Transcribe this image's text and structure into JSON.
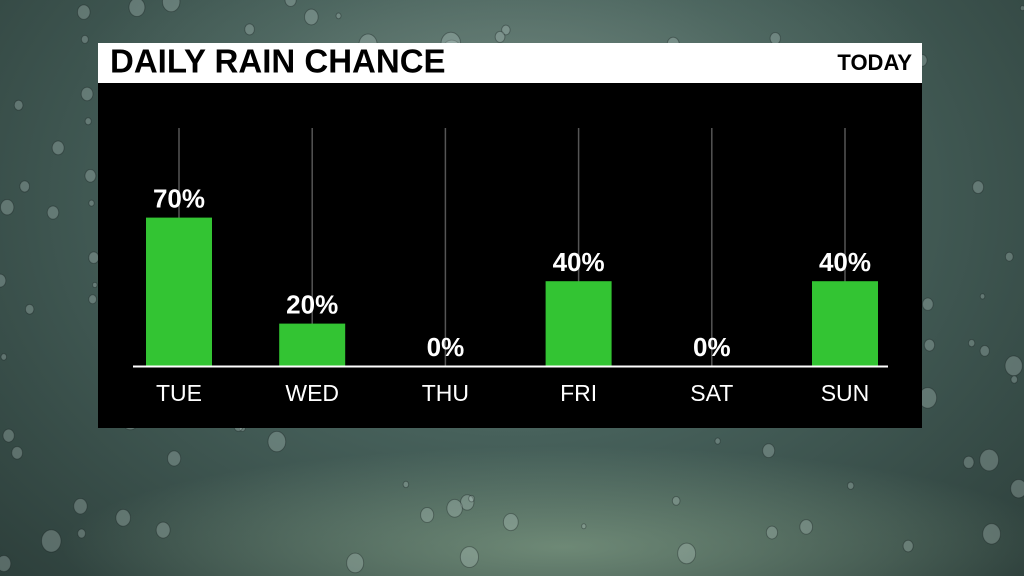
{
  "chart_data": {
    "type": "bar",
    "title": "DAILY RAIN CHANCE",
    "subtitle": "TODAY",
    "categories": [
      "TUE",
      "WED",
      "THU",
      "FRI",
      "SAT",
      "SUN"
    ],
    "values": [
      70,
      20,
      0,
      40,
      0,
      40
    ],
    "value_labels": [
      "70%",
      "20%",
      "0%",
      "40%",
      "0%",
      "40%"
    ],
    "color": "#33c433"
  }
}
